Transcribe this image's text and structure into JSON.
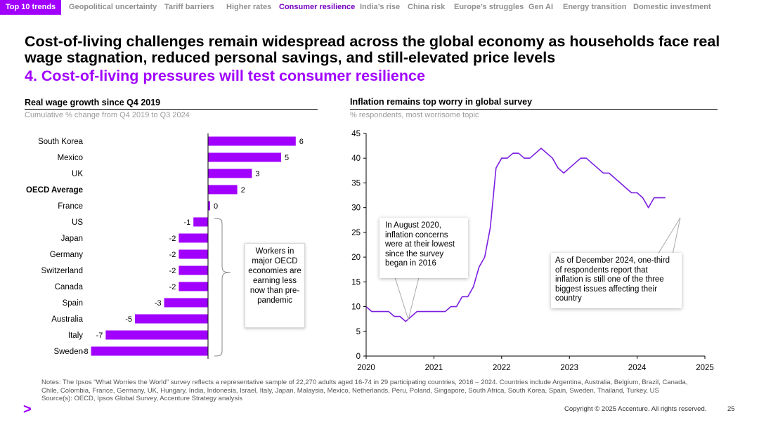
{
  "nav": {
    "active": "Top 10 trends",
    "tabs": [
      "Geopolitical uncertainty",
      "Tariff barriers",
      "Higher rates",
      "Consumer resilience",
      "India’s rise",
      "China risk",
      "Europe’s struggles",
      "Gen AI",
      "Energy transition",
      "Domestic investment"
    ],
    "current": "Consumer resilience"
  },
  "headline": "Cost-of-living challenges remain widespread across the global economy as households face real wage stagnation, reduced personal savings, and still-elevated price levels",
  "subhead": "4. Cost-of-living pressures will test consumer resilience",
  "colors": {
    "accent": "#a100ff",
    "line": "#7b1fe0"
  },
  "left_chart": {
    "title": "Real wage growth since Q4 2019",
    "subtitle": "Cumulative % change from Q4 2019 to Q3 2024",
    "callout": "Workers in major OECD economies are earning less now than pre-pandemic"
  },
  "right_chart": {
    "title": "Inflation remains top worry in global survey",
    "subtitle": "% respondents, most worrisome topic",
    "callout_low": "In August 2020, inflation concerns were at their lowest since the survey began in 2016",
    "callout_latest": "As of December 2024, one-third of respondents report that inflation is still one of the three biggest issues affecting their country"
  },
  "chart_data": [
    {
      "type": "bar",
      "title": "Real wage growth since Q4 2019",
      "subtitle": "Cumulative % change from Q4 2019 to Q3 2024",
      "categories": [
        "South Korea",
        "Mexico",
        "UK",
        "OECD Average",
        "France",
        "US",
        "Japan",
        "Germany",
        "Switzerland",
        "Canada",
        "Spain",
        "Australia",
        "Italy",
        "Sweden"
      ],
      "values": [
        6,
        5,
        3,
        2,
        0,
        -1,
        -2,
        -2,
        -2,
        -2,
        -3,
        -5,
        -7,
        -8
      ],
      "value_labels": [
        "6",
        "5",
        "3",
        "2",
        "0",
        "-1",
        "-2",
        "-2",
        "-2",
        "-2",
        "-3",
        "-5",
        "-7",
        "-8"
      ],
      "bold_category": "OECD Average",
      "orientation": "horizontal"
    },
    {
      "type": "line",
      "title": "Inflation remains top worry in global survey",
      "subtitle": "% respondents, most worrisome topic",
      "series": [
        {
          "name": "Inflation",
          "x": [
            2020.0,
            2020.083,
            2020.167,
            2020.25,
            2020.333,
            2020.417,
            2020.5,
            2020.583,
            2020.667,
            2020.75,
            2020.833,
            2020.917,
            2021.0,
            2021.083,
            2021.167,
            2021.25,
            2021.333,
            2021.417,
            2021.5,
            2021.583,
            2021.667,
            2021.75,
            2021.833,
            2021.917,
            2022.0,
            2022.083,
            2022.167,
            2022.25,
            2022.333,
            2022.417,
            2022.5,
            2022.583,
            2022.667,
            2022.75,
            2022.833,
            2022.917,
            2023.0,
            2023.083,
            2023.167,
            2023.25,
            2023.333,
            2023.417,
            2023.5,
            2023.583,
            2023.667,
            2023.75,
            2023.833,
            2023.917,
            2024.0,
            2024.083,
            2024.167,
            2024.25,
            2024.333,
            2024.417,
            2024.5,
            2024.583,
            2024.667,
            2024.75,
            2024.833,
            2024.917
          ],
          "values": [
            10,
            9,
            9,
            9,
            9,
            8,
            8,
            7,
            8,
            9,
            9,
            9,
            9,
            9,
            9,
            10,
            10,
            12,
            12,
            14,
            18,
            20,
            26,
            38,
            40,
            40,
            41,
            41,
            40,
            40,
            41,
            42,
            41,
            40,
            38,
            37,
            38,
            39,
            40,
            40,
            39,
            38,
            37,
            37,
            36,
            35,
            34,
            33,
            33,
            32,
            30,
            32,
            32,
            32,
            null,
            null,
            null,
            null,
            null,
            null
          ]
        }
      ],
      "xlim": [
        2020,
        2025
      ],
      "ylim": [
        0,
        45
      ],
      "xticks": [
        "2020",
        "2021",
        "2022",
        "2023",
        "2024",
        "2025"
      ],
      "yticks": [
        "0",
        "5",
        "10",
        "15",
        "20",
        "25",
        "30",
        "35",
        "40",
        "45"
      ]
    }
  ],
  "footer": {
    "notes": "Notes: The Ipsos “What Worries the World” survey reflects a representative sample of 22,270 adults aged 16-74 in 29 participating countries, 2016 – 2024. Countries include Argentina, Australia, Belgium, Brazil, Canada, Chile, Colombia, France, Germany, UK, Hungary, India, Indonesia, Israel, Italy, Japan, Malaysia, Mexico, Netherlands, Peru, Poland, Singapore, South Africa, South Korea, Spain, Sweden, Thailand, Turkey, US",
    "sources": "Source(s): OECD, Ipsos Global Survey, Accenture Strategy analysis",
    "copyright": "Copyright © 2025 Accenture. All rights reserved.",
    "page": "25",
    "logo": ">"
  }
}
